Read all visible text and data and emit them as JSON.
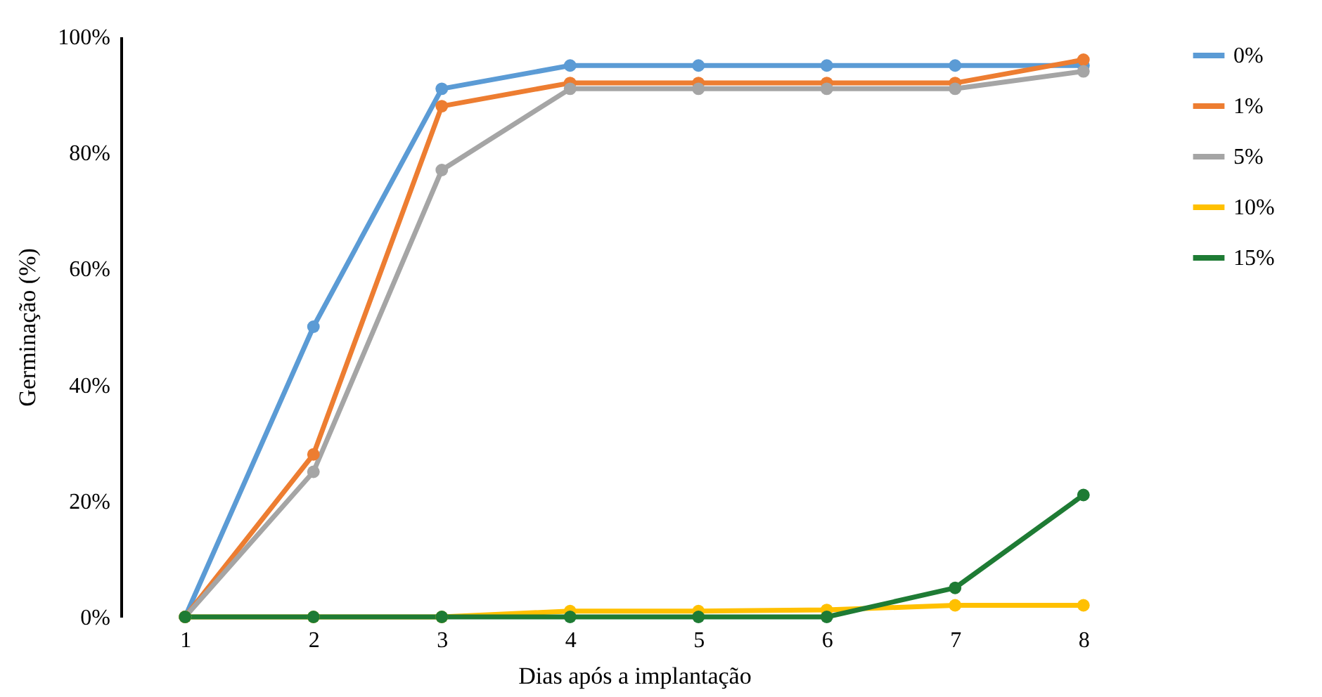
{
  "chart_data": {
    "type": "line",
    "xlabel": "Dias após a implantação",
    "ylabel": "Germinação (%)",
    "categories": [
      "1",
      "2",
      "3",
      "4",
      "5",
      "6",
      "7",
      "8"
    ],
    "series": [
      {
        "name": "0%",
        "color": "#5b9bd5",
        "values": [
          0,
          50,
          91,
          95,
          95,
          95,
          95,
          95
        ]
      },
      {
        "name": "1%",
        "color": "#ed7d31",
        "values": [
          0,
          28,
          88,
          92,
          92,
          92,
          92,
          96
        ]
      },
      {
        "name": "5%",
        "color": "#a5a5a5",
        "values": [
          0,
          25,
          77,
          91,
          91,
          91,
          91,
          94
        ]
      },
      {
        "name": "10%",
        "color": "#ffc000",
        "values": [
          0,
          0,
          0,
          1,
          1,
          1.2,
          2,
          2
        ]
      },
      {
        "name": "15%",
        "color": "#1e7b34",
        "values": [
          0,
          0,
          0,
          0,
          0,
          0,
          5,
          21
        ]
      }
    ],
    "ylim": [
      0,
      100
    ],
    "yticks": [
      {
        "value": 0,
        "label": "0%"
      },
      {
        "value": 20,
        "label": "20%"
      },
      {
        "value": 40,
        "label": "40%"
      },
      {
        "value": 60,
        "label": "60%"
      },
      {
        "value": 80,
        "label": "80%"
      },
      {
        "value": 100,
        "label": "100%"
      }
    ],
    "legend": "right",
    "marker": "circle",
    "line_style": "solid",
    "grid": false
  }
}
